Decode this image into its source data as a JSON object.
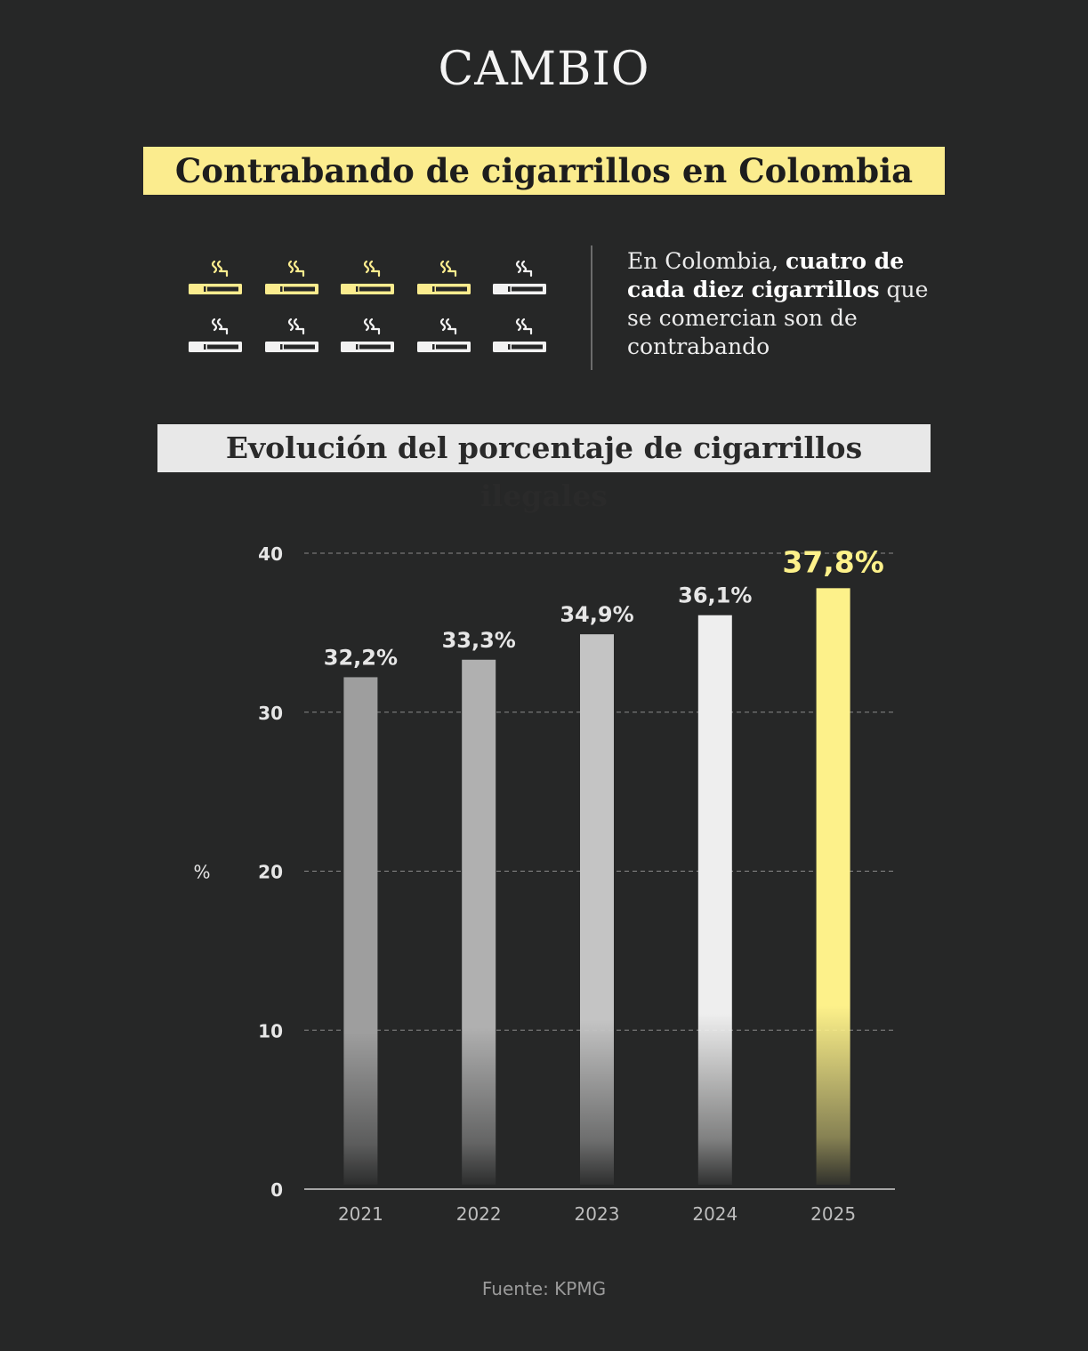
{
  "brand": "CAMBIO",
  "title": "Contrabando de cigarrillos en Colombia",
  "intro": {
    "part1": "En Colombia, ",
    "bold": "cuatro de cada diez cigarrillos",
    "part2": " que se comercian son de contrabando"
  },
  "icons": {
    "total": 10,
    "highlighted": 4,
    "icon_name": "cigarette-icon",
    "highlight_color": "#fbec8e",
    "base_color": "#f2f2f2"
  },
  "subtitle": "Evolución del porcentaje de cigarrillos ilegales",
  "source": "Fuente: KPMG",
  "chart_data": {
    "type": "bar",
    "categories": [
      "2021",
      "2022",
      "2023",
      "2024",
      "2025"
    ],
    "values": [
      32.2,
      33.3,
      34.9,
      36.1,
      37.8
    ],
    "value_labels": [
      "32,2%",
      "33,3%",
      "34,9%",
      "36,1%",
      "37,8%"
    ],
    "ylabel": "%",
    "ylim": [
      0,
      40
    ],
    "yticks": [
      0,
      10,
      20,
      30,
      40
    ],
    "grid": true,
    "bar_colors": [
      "#9e9e9e",
      "#b0b0b0",
      "#c4c4c4",
      "#eeeeee",
      "#fdf18a"
    ],
    "label_colors": [
      "#e6e6e6",
      "#e6e6e6",
      "#e6e6e6",
      "#e6e6e6",
      "#fdf18a"
    ],
    "highlight_index": 4
  }
}
